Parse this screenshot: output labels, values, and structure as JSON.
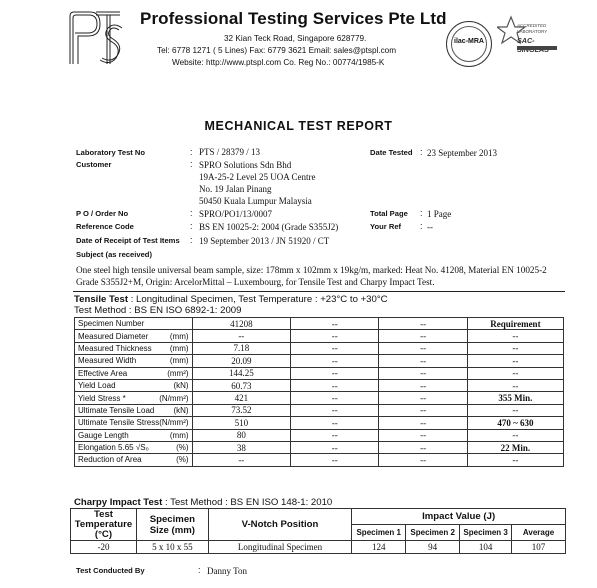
{
  "header": {
    "company_name": "Professional Testing Services Pte Ltd",
    "address": "32 Kian Teck Road, Singapore 628779.",
    "contact": "Tel: 6778 1271 ( 5 Lines)   Fax: 6779 3621   Email: sales@ptspl.com",
    "web": "Website: http://www.ptspl.com    Co. Reg No.: 00774/1985-K",
    "logo_text": "PTS",
    "seal_left_text": "ilac-MRA",
    "seal_right_lines": [
      "ACCREDITED",
      "LABORATORY",
      "SAC-SINGLAS"
    ]
  },
  "title": "MECHANICAL TEST REPORT",
  "fields": {
    "lab_test_no_label": "Laboratory Test No",
    "lab_test_no": "PTS / 28379 / 13",
    "date_tested_label": "Date Tested",
    "date_tested": "23 September 2013",
    "customer_label": "Customer",
    "customer_lines": [
      "SPRO Solutions Sdn Bhd",
      "19A-25-2 Level 25 UOA Centre",
      "No. 19 Jalan Pinang",
      "50450 Kuala Lumpur Malaysia"
    ],
    "po_label": "P O / Order No",
    "po": "SPRO/PO1/13/0007",
    "total_page_label": "Total Page",
    "total_page": "1 Page",
    "ref_code_label": "Reference Code",
    "ref_code": "BS EN 10025-2: 2004 (Grade S355J2)",
    "your_ref_label": "Your Ref",
    "your_ref": "--",
    "receipt_label": "Date of Receipt of Test Items",
    "receipt": "19 September 2013 / JN 51920 / CT",
    "subject_label": "Subject (as received)"
  },
  "description": "One steel high tensile universal beam sample, size: 178mm x 102mm x 19kg/m, marked: Heat No. 41208, Material EN 10025-2 Grade S355J2+M, Origin: ArcelorMittal – Luxembourg, for Tensile Test and Charpy Impact Test.",
  "tensile": {
    "heading_bold": "Tensile Test",
    "heading_rest": ": Longitudinal Specimen, Test Temperature : +23°C to +30°C",
    "method": "Test Method : BS EN ISO 6892-1: 2009",
    "rows": [
      {
        "label": "Specimen Number",
        "unit": "",
        "v1": "41208",
        "v2": "--",
        "v3": "--",
        "req": "Requirement"
      },
      {
        "label": "Measured Diameter",
        "unit": "(mm)",
        "v1": "--",
        "v2": "--",
        "v3": "--",
        "req": "--"
      },
      {
        "label": "Measured Thickness",
        "unit": "(mm)",
        "v1": "7.18",
        "v2": "--",
        "v3": "--",
        "req": "--"
      },
      {
        "label": "Measured Width",
        "unit": "(mm)",
        "v1": "20.09",
        "v2": "--",
        "v3": "--",
        "req": "--"
      },
      {
        "label": "Effective Area",
        "unit": "(mm²)",
        "v1": "144.25",
        "v2": "--",
        "v3": "--",
        "req": "--"
      },
      {
        "label": "Yield Load",
        "unit": "(kN)",
        "v1": "60.73",
        "v2": "--",
        "v3": "--",
        "req": "--"
      },
      {
        "label": "Yield Stress *",
        "unit": "(N/mm²)",
        "v1": "421",
        "v2": "--",
        "v3": "--",
        "req": "355 Min."
      },
      {
        "label": "Ultimate Tensile Load",
        "unit": "(kN)",
        "v1": "73.52",
        "v2": "--",
        "v3": "--",
        "req": "--"
      },
      {
        "label": "Ultimate Tensile Stress",
        "unit": "(N/mm²)",
        "v1": "510",
        "v2": "--",
        "v3": "--",
        "req": "470 ~ 630"
      },
      {
        "label": "Gauge Length",
        "unit": "(mm)",
        "v1": "80",
        "v2": "--",
        "v3": "--",
        "req": "--"
      },
      {
        "label": "Elongation 5.65 √S₀",
        "unit": "(%)",
        "v1": "38",
        "v2": "--",
        "v3": "--",
        "req": "22 Min."
      },
      {
        "label": "Reduction of Area",
        "unit": "(%)",
        "v1": "--",
        "v2": "--",
        "v3": "--",
        "req": "--"
      }
    ]
  },
  "charpy": {
    "heading_bold": "Charpy Impact Test",
    "heading_rest": ": Test Method : BS EN ISO 148-1: 2010",
    "col_temp_1": "Test",
    "col_temp_2": "Temperature",
    "col_temp_3": "(°C)",
    "col_size": "Specimen Size (mm)",
    "col_notch": "V-Notch Position",
    "col_impact": "Impact Value (J)",
    "sub": [
      "Specimen 1",
      "Specimen 2",
      "Specimen 3",
      "Average"
    ],
    "row": {
      "temp": "-20",
      "size": "5 x 10 x 55",
      "notch": "Longitudinal Specimen",
      "s1": "124",
      "s2": "94",
      "s3": "104",
      "avg": "107"
    }
  },
  "footer": {
    "conducted_label": "Test Conducted By",
    "conducted": "Danny Ton"
  }
}
